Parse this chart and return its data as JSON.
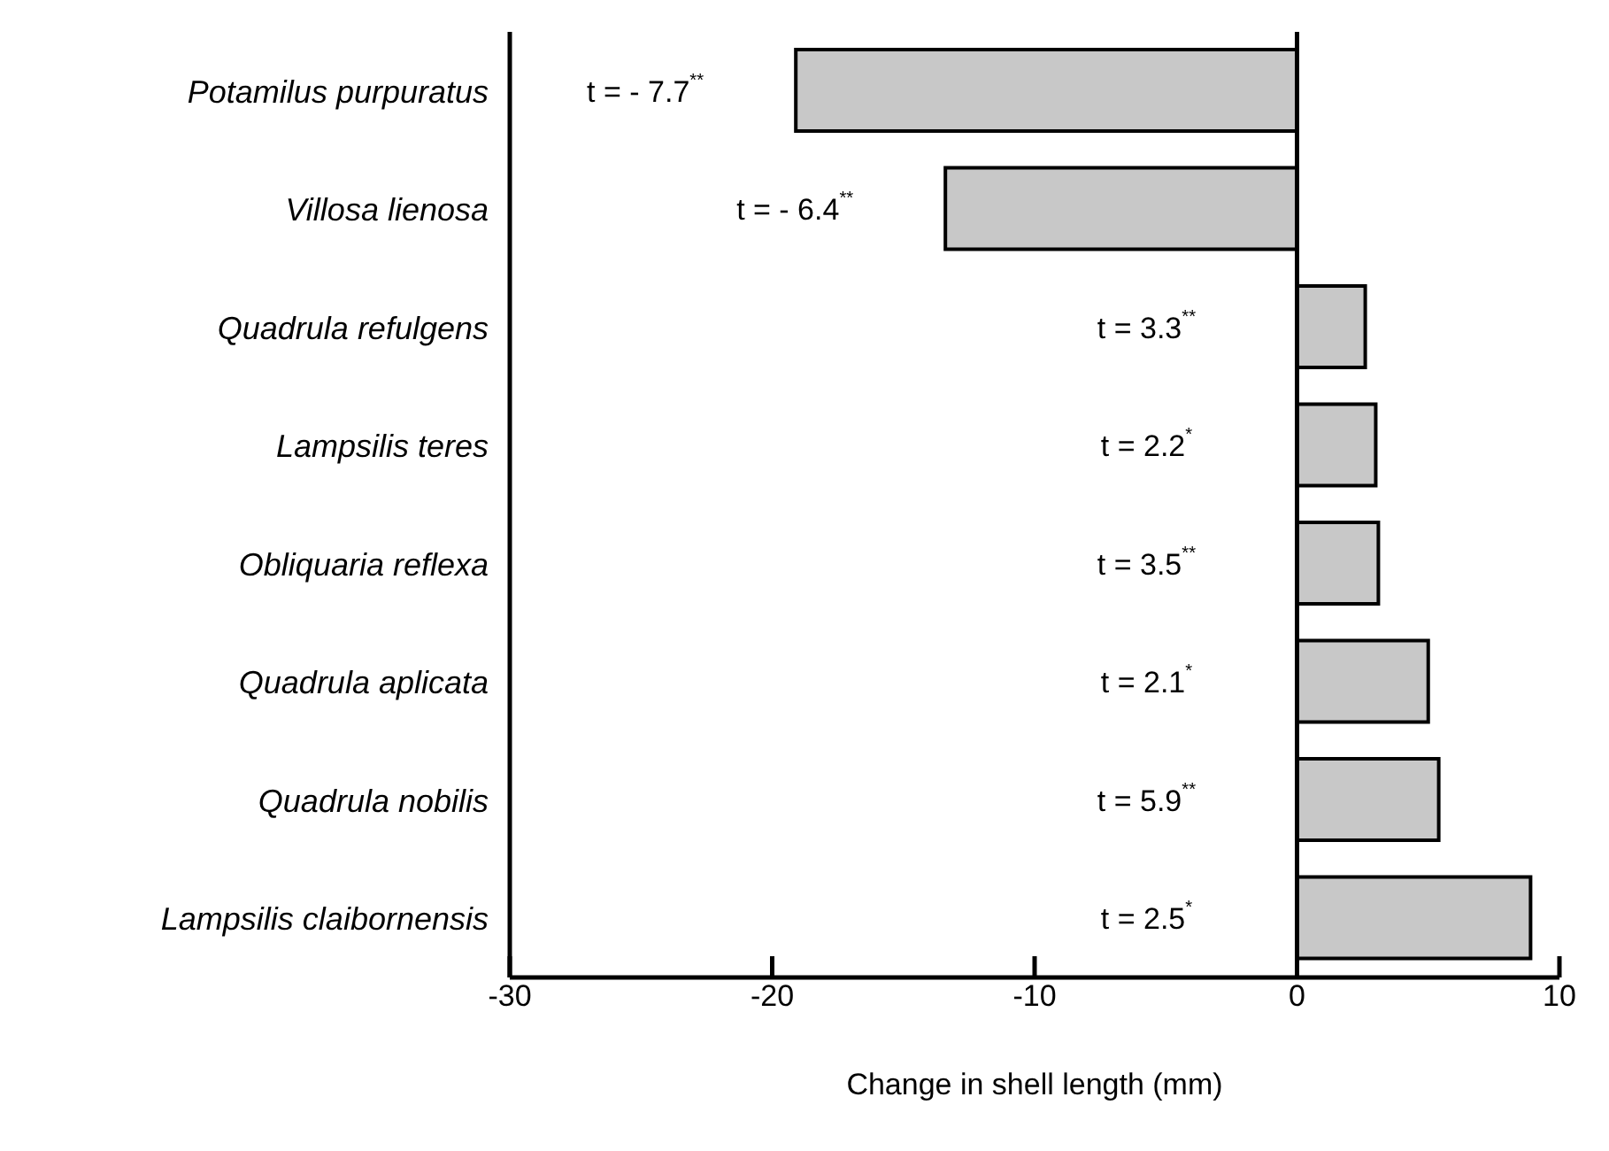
{
  "chart_data": {
    "type": "bar",
    "orientation": "horizontal",
    "xlabel": "Change in shell length (mm)",
    "categories": [
      "Potamilus purpuratus",
      "Villosa lienosa",
      "Quadrula refulgens",
      "Lampsilis teres",
      "Obliquaria reflexa",
      "Quadrula aplicata",
      "Quadrula nobilis",
      "Lampsilis claibornensis"
    ],
    "values": [
      -19.1,
      -13.4,
      2.6,
      3.0,
      3.1,
      5.0,
      5.4,
      8.9
    ],
    "color": "#c8c8c8",
    "xlim": [
      -30,
      10
    ],
    "xticks": [
      -30,
      -20,
      -10,
      0,
      10
    ],
    "grid": false,
    "legend": false,
    "ref_lines": [
      {
        "axis": "x",
        "value": 0,
        "color": "#000000"
      }
    ],
    "annotations": [
      "t = - 7.7$^{**}$",
      "t = - 6.4$^{**}$",
      "t = 3.3$^{**}$",
      "t = 2.2$^{*}$",
      "t = 3.5$^{**}$",
      "t = 2.1$^{*}$",
      "t = 5.9$^{**}$",
      "t = 2.5$^{*}$"
    ]
  }
}
